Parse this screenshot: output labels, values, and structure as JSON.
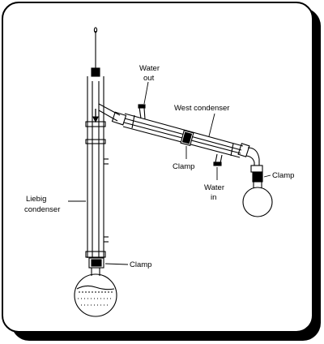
{
  "labels": {
    "water_out_line1": "Water",
    "water_out_line2": "out",
    "west_condenser": "West condenser",
    "clamp_middle": "Clamp",
    "water_in_line1": "Water",
    "water_in_line2": "in",
    "clamp_right": "Clamp",
    "liebig_line1": "Liebig",
    "liebig_line2": "condenser",
    "clamp_bottom": "Clamp"
  },
  "colors": {
    "frame_shadow": "#000000",
    "frame_fill": "#ffffff",
    "ink": "#000000"
  }
}
